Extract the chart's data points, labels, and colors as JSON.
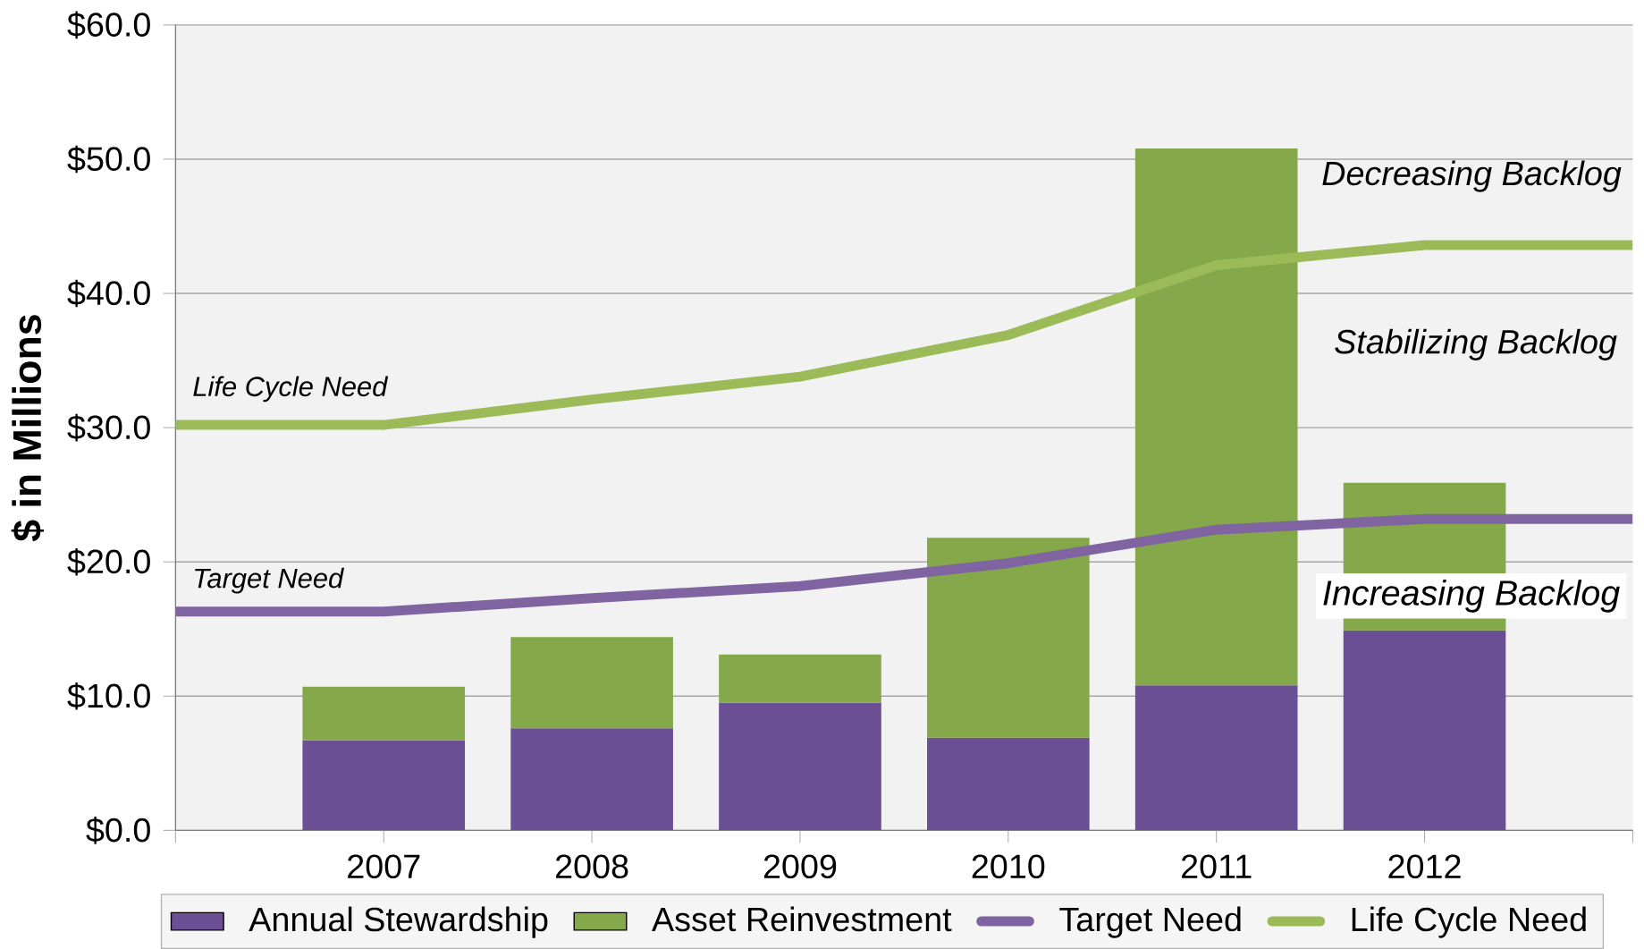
{
  "chart_data": {
    "type": "bar",
    "stacked": true,
    "x": [
      2007,
      2008,
      2009,
      2010,
      2011,
      2012
    ],
    "series": [
      {
        "name": "Annual Stewardship",
        "color": "#6b4f95",
        "values": [
          6.7,
          7.6,
          9.5,
          6.9,
          10.8,
          14.9
        ]
      },
      {
        "name": "Asset Reinvestment",
        "color": "#84a84a",
        "values": [
          4.0,
          6.8,
          3.6,
          14.9,
          40.0,
          11.0
        ]
      },
      {
        "name": "Target Need",
        "type": "line",
        "color": "#8064a2",
        "x": [
          2006,
          2007,
          2008,
          2009,
          2010,
          2011,
          2012,
          2013
        ],
        "values": [
          16.3,
          16.3,
          17.3,
          18.2,
          19.9,
          22.4,
          23.2,
          23.2
        ]
      },
      {
        "name": "Life Cycle Need",
        "type": "line",
        "color": "#9bbb59",
        "x": [
          2006,
          2007,
          2008,
          2009,
          2010,
          2011,
          2012,
          2013
        ],
        "values": [
          30.2,
          30.2,
          32.1,
          33.8,
          36.9,
          42.1,
          43.6,
          43.6
        ]
      }
    ],
    "ylabel": "$ in Millions",
    "xlim": [
      2006,
      2013
    ],
    "xticks": [
      {
        "value": 2006,
        "label": null
      },
      2007,
      2008,
      2009,
      2010,
      2011,
      2012,
      {
        "value": 2013,
        "label": null
      }
    ],
    "ylim": [
      0,
      60
    ],
    "yticks": [
      {
        "value": 0,
        "label": "$0.0"
      },
      {
        "value": 10,
        "label": "$10.0"
      },
      {
        "value": 20,
        "label": "$20.0"
      },
      {
        "value": 30,
        "label": "$30.0"
      },
      {
        "value": 40,
        "label": "$40.0"
      },
      {
        "value": 50,
        "label": "$50.0"
      },
      {
        "value": 60,
        "label": "$60.0"
      }
    ],
    "grid": "y",
    "legend": "bottom",
    "annotations": [
      "Life Cycle Need",
      "Target Need",
      "Decreasing Backlog",
      "Stabilizing Backlog",
      "Increasing Backlog"
    ]
  }
}
